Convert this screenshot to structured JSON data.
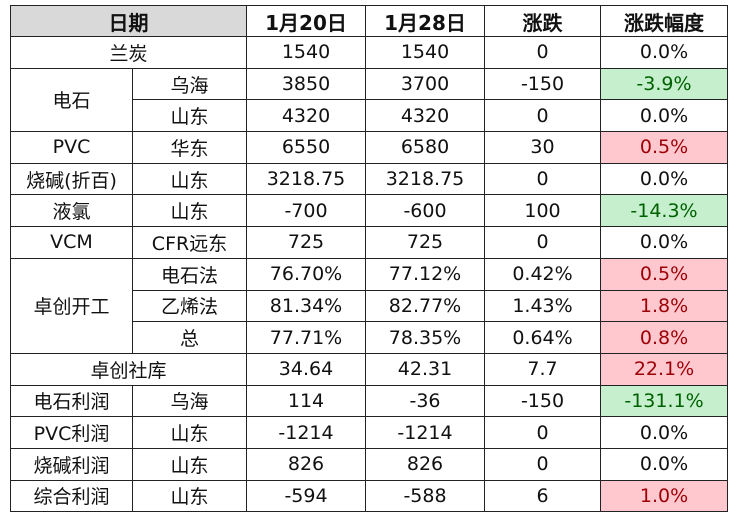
{
  "headers": {
    "date": "日期",
    "jan20": "1月20日",
    "jan28": "1月28日",
    "change": "涨跌",
    "pct": "涨跌幅度"
  },
  "rows": {
    "r0": {
      "name": "兰炭",
      "v1": "1540",
      "v2": "1540",
      "d": "0",
      "p": "0.0%"
    },
    "r1": {
      "group": "电石",
      "sub": "乌海",
      "v1": "3850",
      "v2": "3700",
      "d": "-150",
      "p": "-3.9%"
    },
    "r2": {
      "sub": "山东",
      "v1": "4320",
      "v2": "4320",
      "d": "0",
      "p": "0.0%"
    },
    "r3": {
      "group": "PVC",
      "sub": "华东",
      "v1": "6550",
      "v2": "6580",
      "d": "30",
      "p": "0.5%"
    },
    "r4": {
      "group": "烧碱(折百)",
      "sub": "山东",
      "v1": "3218.75",
      "v2": "3218.75",
      "d": "0",
      "p": "0.0%"
    },
    "r5": {
      "group": "液氯",
      "sub": "山东",
      "v1": "-700",
      "v2": "-600",
      "d": "100",
      "p": "-14.3%"
    },
    "r6": {
      "group": "VCM",
      "sub": "CFR远东",
      "v1": "725",
      "v2": "725",
      "d": "0",
      "p": "0.0%"
    },
    "r7": {
      "group": "卓创开工",
      "sub": "电石法",
      "v1": "76.70%",
      "v2": "77.12%",
      "d": "0.42%",
      "p": "0.5%"
    },
    "r8": {
      "sub": "乙烯法",
      "v1": "81.34%",
      "v2": "82.77%",
      "d": "1.43%",
      "p": "1.8%"
    },
    "r9": {
      "sub": "总",
      "v1": "77.71%",
      "v2": "78.35%",
      "d": "0.64%",
      "p": "0.8%"
    },
    "r10": {
      "name": "卓创社库",
      "v1": "34.64",
      "v2": "42.31",
      "d": "7.7",
      "p": "22.1%"
    },
    "r11": {
      "group": "电石利润",
      "sub": "乌海",
      "v1": "114",
      "v2": "-36",
      "d": "-150",
      "p": "-131.1%"
    },
    "r12": {
      "group": "PVC利润",
      "sub": "山东",
      "v1": "-1214",
      "v2": "-1214",
      "d": "0",
      "p": "0.0%"
    },
    "r13": {
      "group": "烧碱利润",
      "sub": "山东",
      "v1": "826",
      "v2": "826",
      "d": "0",
      "p": "0.0%"
    },
    "r14": {
      "group": "综合利润",
      "sub": "山东",
      "v1": "-594",
      "v2": "-588",
      "d": "6",
      "p": "1.0%"
    }
  },
  "colors": {
    "header_bg": "#d9d9d9",
    "decrease_bg": "#c6efce",
    "decrease_text": "#006100",
    "increase_bg": "#ffc7ce",
    "increase_text": "#9c0006"
  }
}
